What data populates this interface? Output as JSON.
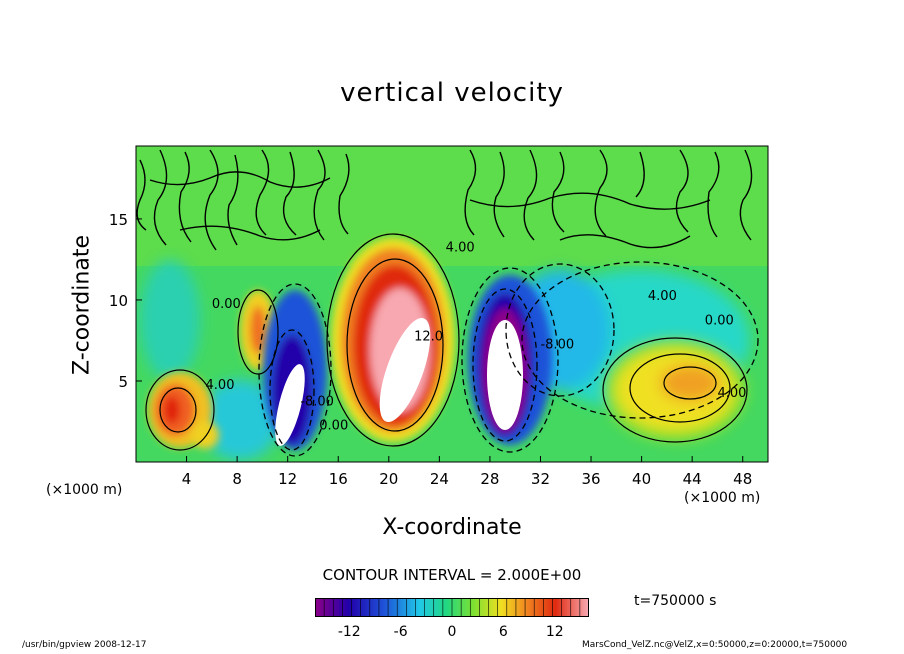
{
  "title": "vertical velocity",
  "chart_data": {
    "type": "heatmap",
    "title": "vertical velocity",
    "xlabel": "X-coordinate",
    "ylabel": "Z-coordinate",
    "x_unit": "(×1000 m)",
    "xlim": [
      0,
      50
    ],
    "ylim": [
      0,
      19.5
    ],
    "x_ticks": [
      4,
      8,
      12,
      16,
      20,
      24,
      28,
      32,
      36,
      40,
      44,
      48
    ],
    "y_ticks": [
      5,
      10,
      15
    ],
    "contour_labels": [
      {
        "text": "0.00",
        "x": 6,
        "y": 9.5
      },
      {
        "text": "4.00",
        "x": 5.5,
        "y": 4.5
      },
      {
        "text": "4.00",
        "x": 40.5,
        "y": 10
      },
      {
        "text": "0.00",
        "x": 45,
        "y": 8.5
      },
      {
        "text": "4.00",
        "x": 46,
        "y": 4
      },
      {
        "text": "-8.00",
        "x": 32,
        "y": 7
      },
      {
        "text": "12.0",
        "x": 22,
        "y": 7.5
      },
      {
        "text": "4.00",
        "x": 24.5,
        "y": 13
      },
      {
        "text": "-8.00",
        "x": 13,
        "y": 3.5
      },
      {
        "text": "0.00",
        "x": 14.5,
        "y": 2
      }
    ],
    "contour_interval": "CONTOUR INTERVAL = 2.000E+00",
    "colorbar": {
      "ticks": [
        -12,
        -6,
        0,
        6,
        12
      ],
      "range": [
        -16,
        16
      ],
      "colors": [
        "#8a008a",
        "#2200aa",
        "#1e52d8",
        "#20c8e8",
        "#22d880",
        "#7ee030",
        "#f0e020",
        "#f08020",
        "#e02a10",
        "#f8a8b0"
      ]
    },
    "time": "t=750000  s"
  },
  "footer": {
    "left": "/usr/bin/gpview   2008-12-17",
    "right": "MarsCond_VelZ.nc@VelZ,x=0:50000,z=0:20000,t=750000"
  }
}
